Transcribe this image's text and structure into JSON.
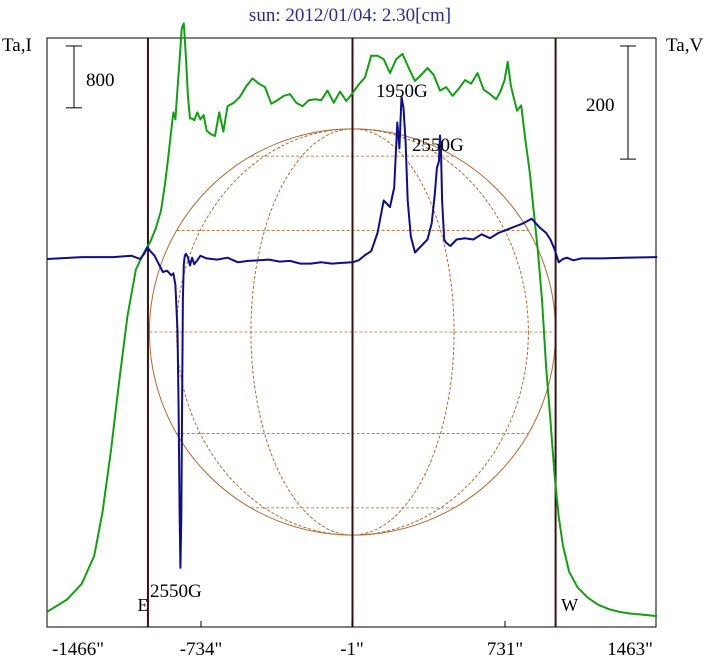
{
  "chart_data": {
    "type": "line",
    "title": "sun: 2012/01/04: 2.30[cm]",
    "left_axis_label": "Ta,I",
    "right_axis_label": "Ta,V",
    "x_unit": "arcsec",
    "x_range": [
      -1470,
      1470
    ],
    "x_ticks": [
      {
        "value": -1466,
        "label": "-1466\""
      },
      {
        "value": -734,
        "label": "-734\""
      },
      {
        "value": -1,
        "label": "-1\""
      },
      {
        "value": 731,
        "label": "731\""
      },
      {
        "value": 1463,
        "label": "1463\""
      }
    ],
    "vertical_markers": [
      {
        "x": -982,
        "label": "E"
      },
      {
        "x": 0,
        "label": ""
      },
      {
        "x": 975,
        "label": "W"
      }
    ],
    "scale_bars": [
      {
        "side": "left",
        "label": "800",
        "units": 800
      },
      {
        "side": "right",
        "label": "200",
        "units": 200
      }
    ],
    "annotations": [
      {
        "text": "1950G",
        "x": 245,
        "series": "V"
      },
      {
        "text": "2550G",
        "x": 430,
        "series": "V"
      },
      {
        "text": "2550G",
        "x": -823,
        "series": "V"
      }
    ],
    "solar_disk": {
      "radius_arcsec": 975,
      "center_x": 0
    },
    "series": [
      {
        "name": "I",
        "color": "#10a010",
        "axis": "left",
        "x": [
          -1466,
          -1370,
          -1300,
          -1240,
          -1200,
          -1160,
          -1120,
          -1080,
          -1040,
          -1000,
          -970,
          -945,
          -920,
          -900,
          -885,
          -870,
          -860,
          -850,
          -840,
          -830,
          -820,
          -810,
          -800,
          -790,
          -780,
          -770,
          -760,
          -745,
          -730,
          -715,
          -700,
          -680,
          -660,
          -640,
          -620,
          -600,
          -570,
          -540,
          -510,
          -480,
          -450,
          -420,
          -390,
          -360,
          -330,
          -300,
          -270,
          -240,
          -210,
          -180,
          -150,
          -120,
          -90,
          -60,
          -30,
          0,
          30,
          60,
          90,
          120,
          150,
          180,
          210,
          240,
          270,
          300,
          330,
          360,
          390,
          420,
          450,
          480,
          510,
          540,
          570,
          600,
          630,
          660,
          690,
          710,
          730,
          745,
          760,
          775,
          790,
          810,
          830,
          850,
          870,
          890,
          910,
          930,
          950,
          970,
          990,
          1010,
          1040,
          1080,
          1130,
          1180,
          1230,
          1280,
          1330,
          1380,
          1420,
          1463
        ],
        "y": [
          60,
          200,
          380,
          700,
          1200,
          1900,
          2700,
          3450,
          3980,
          4180,
          4300,
          4450,
          4650,
          4960,
          5260,
          5580,
          5780,
          5700,
          6050,
          6380,
          6740,
          6800,
          6420,
          5970,
          5710,
          5710,
          5690,
          5780,
          5700,
          5750,
          5570,
          5530,
          5510,
          5780,
          5560,
          5850,
          5890,
          5960,
          6080,
          6170,
          6110,
          6070,
          5880,
          5920,
          5970,
          5990,
          5890,
          5850,
          5920,
          5930,
          5920,
          6030,
          5890,
          6020,
          5910,
          6000,
          6100,
          6180,
          6430,
          6430,
          6390,
          6230,
          6390,
          6450,
          6290,
          6140,
          6210,
          6290,
          6210,
          6030,
          6070,
          5970,
          6050,
          6150,
          6110,
          6230,
          6040,
          5990,
          5930,
          6020,
          6150,
          6360,
          6090,
          5940,
          5800,
          5860,
          5460,
          5110,
          4650,
          4190,
          3620,
          2850,
          2260,
          1620,
          1150,
          820,
          520,
          340,
          220,
          140,
          90,
          60,
          40,
          30,
          20,
          10
        ]
      },
      {
        "name": "V",
        "color": "#0d0d8e",
        "axis": "right",
        "x": [
          -1466,
          -1300,
          -1150,
          -1060,
          -1020,
          -1000,
          -985,
          -970,
          -950,
          -930,
          -910,
          -890,
          -870,
          -860,
          -850,
          -840,
          -835,
          -830,
          -826,
          -822,
          -818,
          -814,
          -810,
          -805,
          -800,
          -790,
          -780,
          -770,
          -760,
          -745,
          -730,
          -700,
          -650,
          -600,
          -550,
          -500,
          -450,
          -400,
          -350,
          -300,
          -250,
          -200,
          -150,
          -100,
          -50,
          0,
          30,
          60,
          90,
          120,
          150,
          180,
          200,
          215,
          225,
          235,
          245,
          255,
          265,
          280,
          300,
          330,
          360,
          380,
          395,
          405,
          415,
          420,
          425,
          430,
          440,
          450,
          470,
          500,
          540,
          580,
          620,
          660,
          700,
          740,
          780,
          820,
          860,
          900,
          930,
          950,
          970,
          990,
          1010,
          1030,
          1060,
          1100,
          1200,
          1300,
          1463
        ],
        "y": [
          0,
          3,
          3,
          5,
          0,
          8,
          18,
          12,
          5,
          -8,
          -20,
          -18,
          -25,
          -22,
          -40,
          -110,
          -230,
          -390,
          -475,
          -400,
          -220,
          -60,
          -8,
          5,
          8,
          3,
          -10,
          2,
          -8,
          -2,
          5,
          1,
          -1,
          2,
          -5,
          -3,
          -2,
          -1,
          -4,
          -3,
          -7,
          -7,
          -5,
          -7,
          -6,
          -5,
          -2,
          6,
          12,
          40,
          90,
          80,
          110,
          210,
          170,
          250,
          232,
          180,
          90,
          35,
          10,
          20,
          30,
          55,
          100,
          140,
          150,
          190,
          165,
          90,
          30,
          25,
          20,
          30,
          32,
          30,
          38,
          32,
          40,
          45,
          50,
          55,
          62,
          48,
          40,
          30,
          15,
          -5,
          0,
          2,
          -2,
          1,
          1,
          2,
          3
        ]
      }
    ]
  }
}
